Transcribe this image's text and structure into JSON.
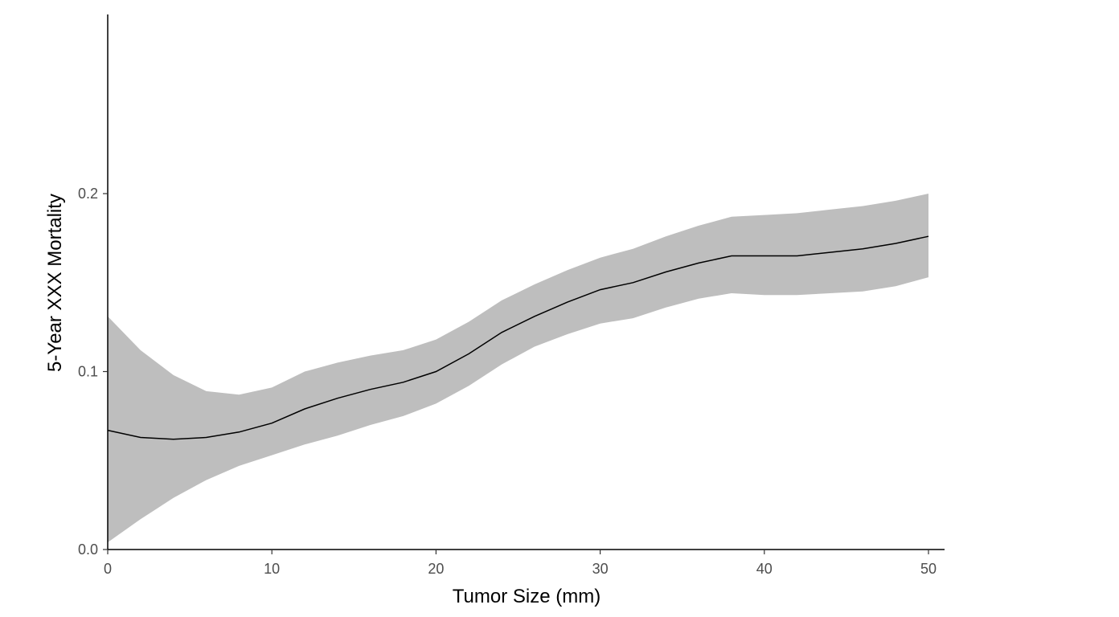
{
  "chart_data": {
    "type": "line",
    "title": "",
    "xlabel": "Tumor Size (mm)",
    "ylabel": "5-Year XXX Mortality",
    "xlim": [
      0,
      51
    ],
    "ylim": [
      0,
      0.3
    ],
    "x_ticks": [
      0,
      10,
      20,
      30,
      40,
      50
    ],
    "x_tick_labels": [
      "0",
      "10",
      "20",
      "30",
      "40",
      "50"
    ],
    "y_ticks": [
      0.0,
      0.1,
      0.2
    ],
    "y_tick_labels": [
      "0.0",
      "0.1",
      "0.2"
    ],
    "grid": false,
    "legend": "none",
    "colors": {
      "line": "#000000",
      "band": "#bebebe",
      "axis": "#000000"
    },
    "series": [
      {
        "x": [
          0,
          2,
          4,
          6,
          8,
          10,
          12,
          14,
          16,
          18,
          20,
          22,
          24,
          26,
          28,
          30,
          32,
          34,
          36,
          38,
          40,
          42,
          44,
          46,
          48,
          50
        ],
        "y": [
          0.067,
          0.063,
          0.062,
          0.063,
          0.066,
          0.071,
          0.079,
          0.085,
          0.09,
          0.094,
          0.1,
          0.11,
          0.122,
          0.131,
          0.139,
          0.146,
          0.15,
          0.156,
          0.161,
          0.165,
          0.165,
          0.165,
          0.167,
          0.169,
          0.172,
          0.176
        ],
        "lower": [
          0.004,
          0.017,
          0.029,
          0.039,
          0.047,
          0.053,
          0.059,
          0.064,
          0.07,
          0.075,
          0.082,
          0.092,
          0.104,
          0.114,
          0.121,
          0.127,
          0.13,
          0.136,
          0.141,
          0.144,
          0.143,
          0.143,
          0.144,
          0.145,
          0.148,
          0.153
        ],
        "upper": [
          0.131,
          0.112,
          0.098,
          0.089,
          0.087,
          0.091,
          0.1,
          0.105,
          0.109,
          0.112,
          0.118,
          0.128,
          0.14,
          0.149,
          0.157,
          0.164,
          0.169,
          0.176,
          0.182,
          0.187,
          0.188,
          0.189,
          0.191,
          0.193,
          0.196,
          0.2
        ]
      }
    ]
  }
}
